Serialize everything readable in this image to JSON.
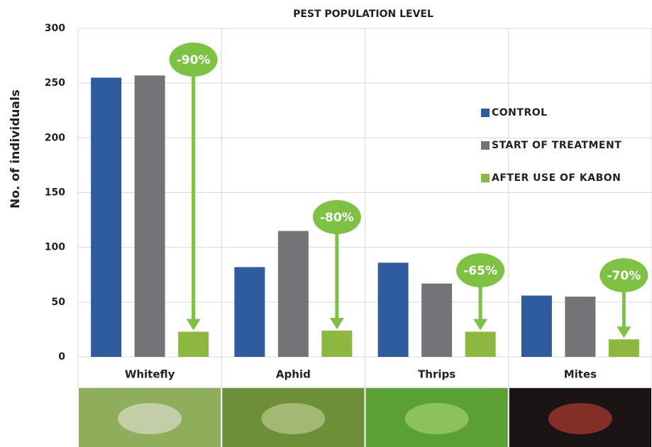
{
  "chart_data": {
    "type": "bar",
    "title": "PEST POPULATION LEVEL",
    "y_label": "No. of individuals",
    "categories": [
      "Whitefly",
      "Aphid",
      "Thrips",
      "Mites"
    ],
    "series": [
      {
        "name": "CONTROL",
        "color": "#2e5c9e",
        "values": [
          255,
          82,
          86,
          56
        ]
      },
      {
        "name": "START OF TREATMENT",
        "color": "#737477",
        "values": [
          257,
          115,
          67,
          55
        ]
      },
      {
        "name": "AFTER USE OF KABON",
        "color": "#8db840",
        "values": [
          23,
          24,
          23,
          16
        ]
      }
    ],
    "annotations": [
      "-90%",
      "-80%",
      "-65%",
      "-70%"
    ],
    "annotation_color": "#7dc242",
    "ylim": [
      0,
      300
    ],
    "yticks": [
      0,
      50,
      100,
      150,
      200,
      250,
      300
    ],
    "grid": true,
    "legend": "right"
  }
}
